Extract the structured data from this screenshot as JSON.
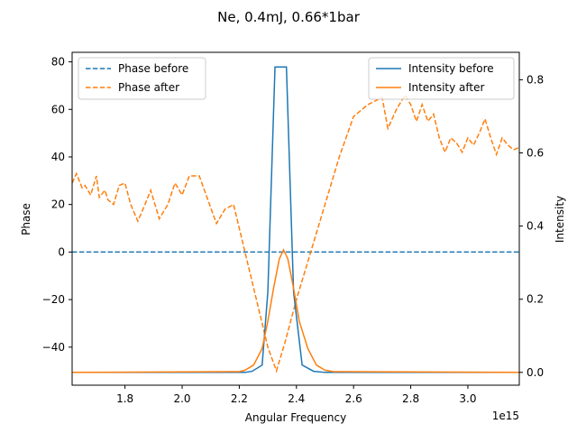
{
  "chart_data": {
    "type": "line",
    "title": "Ne, 0.4mJ, 0.66*1bar",
    "xlabel": "Angular Frequency",
    "x_offset_text": "1e15",
    "ylabel_left": "Phase",
    "ylabel_right": "Intensity",
    "xlim": [
      1.615,
      3.18
    ],
    "ylim_left": [
      -56,
      84
    ],
    "ylim_right": [
      -0.035,
      0.875
    ],
    "xticks": [
      1.8,
      2.0,
      2.2,
      2.4,
      2.6,
      2.8,
      3.0
    ],
    "xtick_labels": [
      "1.8",
      "2.0",
      "2.2",
      "2.4",
      "2.6",
      "2.8",
      "3.0"
    ],
    "yticks_left": [
      -40,
      -20,
      0,
      20,
      40,
      60,
      80
    ],
    "ytick_labels_left": [
      "−40",
      "−20",
      "0",
      "20",
      "40",
      "60",
      "80"
    ],
    "yticks_right": [
      0.0,
      0.2,
      0.4,
      0.6,
      0.8
    ],
    "ytick_labels_right": [
      "0.0",
      "0.2",
      "0.4",
      "0.6",
      "0.8"
    ],
    "grid": false,
    "colors": {
      "before": "#1f77b4",
      "after": "#ff7f0e",
      "axes": "#000000",
      "legend_border": "#cccccc"
    },
    "legend_left": {
      "placement": "upper left",
      "entries": [
        "Phase before",
        "Phase after"
      ]
    },
    "legend_right": {
      "placement": "upper right",
      "entries": [
        "Intensity before",
        "Intensity after"
      ]
    },
    "series": [
      {
        "name": "Phase before",
        "axis": "left",
        "style": "dashed",
        "color_key": "before",
        "x": [
          1.615,
          3.18
        ],
        "y": [
          0,
          0
        ]
      },
      {
        "name": "Phase after",
        "axis": "left",
        "style": "dashed",
        "color_key": "after",
        "x": [
          1.615,
          1.63,
          1.65,
          1.66,
          1.68,
          1.7,
          1.71,
          1.73,
          1.74,
          1.76,
          1.78,
          1.8,
          1.82,
          1.845,
          1.87,
          1.89,
          1.92,
          1.95,
          1.975,
          2.0,
          2.025,
          2.06,
          2.09,
          2.12,
          2.15,
          2.18,
          2.22,
          2.26,
          2.3,
          2.33,
          2.36,
          2.4,
          2.45,
          2.5,
          2.55,
          2.6,
          2.65,
          2.7,
          2.72,
          2.75,
          2.78,
          2.8,
          2.82,
          2.84,
          2.86,
          2.88,
          2.9,
          2.92,
          2.94,
          2.96,
          2.98,
          3.0,
          3.02,
          3.04,
          3.06,
          3.08,
          3.1,
          3.12,
          3.14,
          3.16,
          3.18
        ],
        "y": [
          29,
          33,
          27,
          28,
          24,
          32,
          23,
          26,
          22,
          20,
          28,
          29,
          20,
          13,
          20,
          26,
          14,
          20,
          29,
          24,
          32,
          32,
          22,
          12,
          18,
          20,
          0,
          -20,
          -40,
          -50,
          -38,
          -20,
          0,
          20,
          40,
          57,
          62,
          65,
          52,
          60,
          66,
          62,
          55,
          62,
          55,
          58,
          48,
          42,
          48,
          46,
          42,
          48,
          45,
          50,
          56,
          48,
          41,
          48,
          45,
          43,
          44
        ]
      },
      {
        "name": "Intensity before",
        "axis": "right",
        "style": "solid",
        "color_key": "before",
        "x": [
          1.615,
          2.22,
          2.245,
          2.28,
          2.3,
          2.325,
          2.365,
          2.39,
          2.42,
          2.46,
          2.5,
          3.18
        ],
        "y": [
          0.0,
          0.0,
          0.003,
          0.02,
          0.22,
          0.835,
          0.835,
          0.22,
          0.02,
          0.003,
          0.0,
          0.0
        ]
      },
      {
        "name": "Intensity after",
        "axis": "right",
        "style": "solid",
        "color_key": "after",
        "x": [
          1.615,
          2.2,
          2.22,
          2.25,
          2.28,
          2.3,
          2.32,
          2.34,
          2.355,
          2.37,
          2.39,
          2.41,
          2.44,
          2.47,
          2.5,
          2.53,
          3.18
        ],
        "y": [
          0.0,
          0.002,
          0.006,
          0.02,
          0.065,
          0.14,
          0.23,
          0.31,
          0.335,
          0.31,
          0.23,
          0.14,
          0.065,
          0.02,
          0.006,
          0.002,
          0.0
        ]
      }
    ]
  }
}
